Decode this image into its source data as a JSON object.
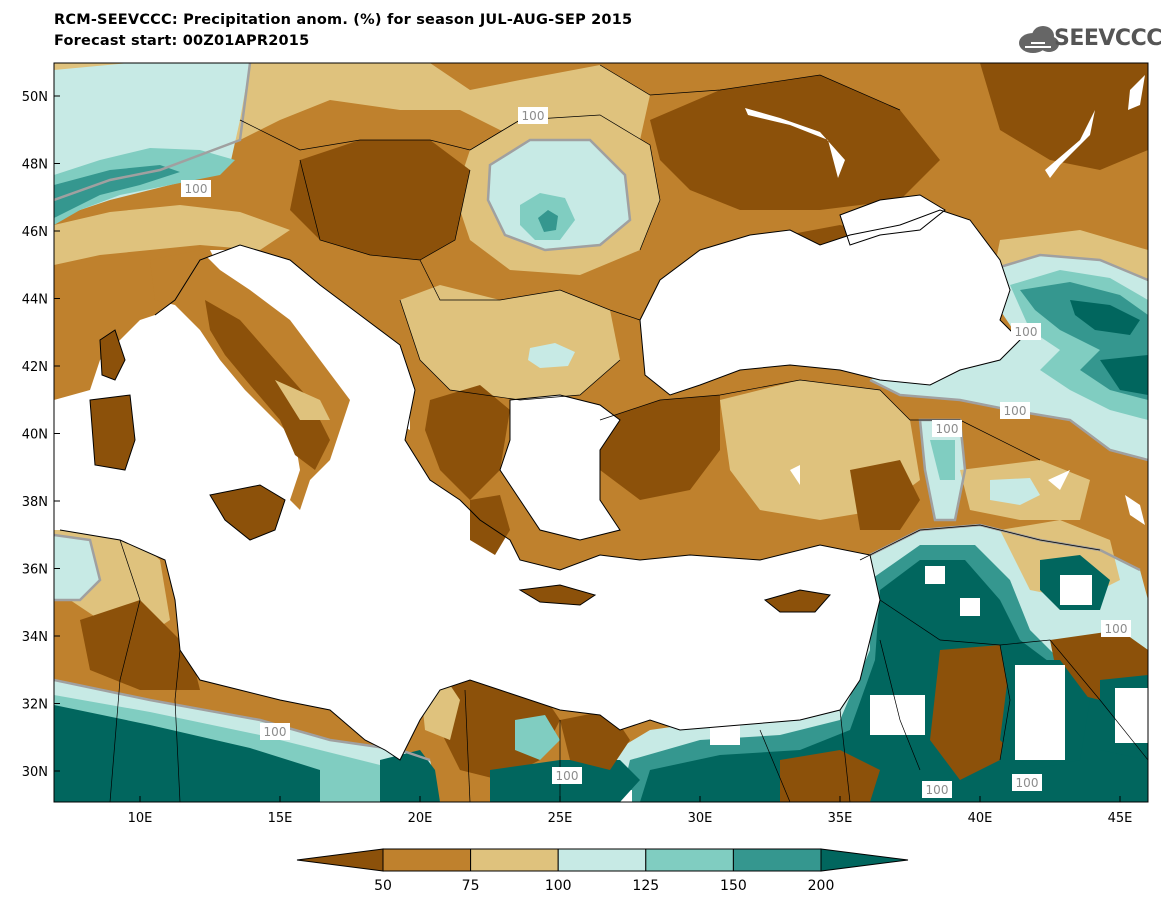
{
  "header": {
    "title_line1": "RCM-SEEVCCC: Precipitation anom. (%) for season JUL-AUG-SEP 2015",
    "title_line2": "Forecast start: 00Z01APR2015"
  },
  "logo": {
    "text": "SEEVCCC",
    "icon": "cloud-icon"
  },
  "map": {
    "y_axis": [
      "50N",
      "48N",
      "46N",
      "44N",
      "42N",
      "40N",
      "38N",
      "36N",
      "34N",
      "32N",
      "30N"
    ],
    "x_axis": [
      "10E",
      "15E",
      "20E",
      "25E",
      "30E",
      "35E",
      "40E",
      "45E"
    ],
    "contour_labels": [
      "100",
      "100",
      "100",
      "100",
      "100",
      "100",
      "100",
      "100",
      "100",
      "100"
    ],
    "colors": {
      "lt50": "#8c510a",
      "50_75": "#bf812d",
      "75_100": "#dfc27d",
      "100_125": "#c7eae5",
      "125_150": "#80cdc1",
      "150_200": "#35978f",
      "gt200": "#01665e",
      "sea": "#ffffff"
    }
  },
  "legend": {
    "labels": [
      "50",
      "75",
      "100",
      "125",
      "150",
      "200"
    ],
    "colors": [
      "#8c510a",
      "#bf812d",
      "#dfc27d",
      "#c7eae5",
      "#80cdc1",
      "#35978f",
      "#01665e"
    ]
  }
}
